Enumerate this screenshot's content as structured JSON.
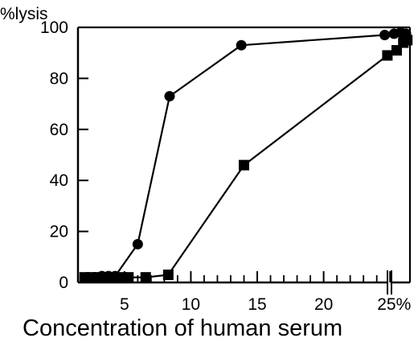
{
  "chart_data": {
    "type": "line",
    "title": "",
    "ylabel": "%lysis",
    "xlabel": "Concentration of human serum",
    "xlim": [
      1.5,
      26.5
    ],
    "ylim": [
      0,
      100
    ],
    "x_ticks": [
      {
        "value": 5,
        "label": "5"
      },
      {
        "value": 10,
        "label": "10"
      },
      {
        "value": 15,
        "label": "15"
      },
      {
        "value": 20,
        "label": "20"
      },
      {
        "value": 25,
        "label": "25%"
      }
    ],
    "y_ticks": [
      {
        "value": 0,
        "label": "0"
      },
      {
        "value": 20,
        "label": "20"
      },
      {
        "value": 40,
        "label": "40"
      },
      {
        "value": 60,
        "label": "60"
      },
      {
        "value": 80,
        "label": "80"
      },
      {
        "value": 100,
        "label": "100"
      }
    ],
    "axis_break_x": 24.6,
    "grid": false,
    "series": [
      {
        "marker": "circle",
        "x": [
          2.2,
          2.8,
          3.3,
          3.8,
          4.3,
          6.0,
          8.4,
          13.8,
          24.6,
          25.3,
          25.8,
          26.2
        ],
        "y": [
          2,
          2,
          2.5,
          2.5,
          2.5,
          15,
          73,
          93,
          97,
          97.5,
          98,
          97.5
        ]
      },
      {
        "marker": "square",
        "x": [
          2.0,
          2.5,
          3.0,
          3.6,
          4.2,
          4.8,
          5.3,
          6.6,
          8.3,
          14.0,
          24.8,
          25.5,
          26.0,
          26.3
        ],
        "y": [
          2,
          2,
          2,
          2,
          2,
          2,
          2,
          2,
          3,
          46,
          89,
          91,
          94,
          95
        ]
      }
    ]
  }
}
